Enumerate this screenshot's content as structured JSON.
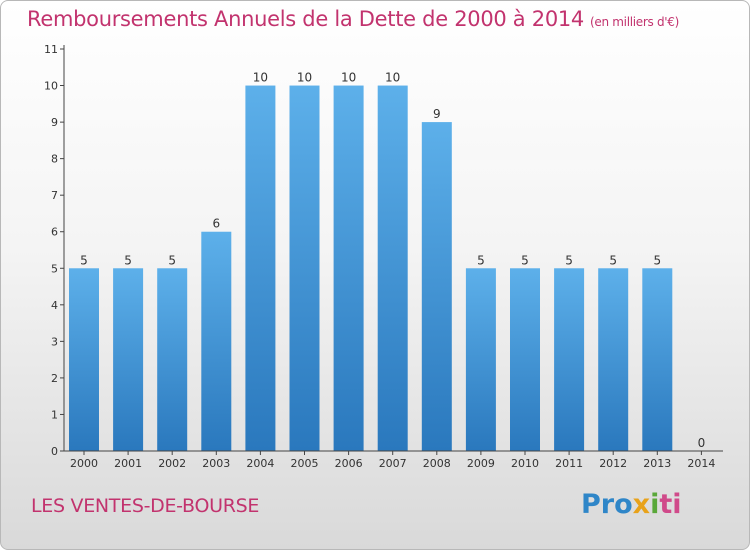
{
  "chart_data": {
    "type": "bar",
    "title": "Remboursements Annuels de la Dette de 2000 à 2014",
    "subtitle": "(en milliers d'€)",
    "categories": [
      "2000",
      "2001",
      "2002",
      "2003",
      "2004",
      "2005",
      "2006",
      "2007",
      "2008",
      "2009",
      "2010",
      "2011",
      "2012",
      "2013",
      "2014"
    ],
    "values": [
      5,
      5,
      5,
      6,
      10,
      10,
      10,
      10,
      9,
      5,
      5,
      5,
      5,
      5,
      0
    ],
    "ylim": [
      0,
      11
    ],
    "yticks": [
      0,
      1,
      2,
      3,
      4,
      5,
      6,
      7,
      8,
      9,
      10,
      11
    ],
    "grid": false,
    "bar_color": "#3d95d8"
  },
  "footer": {
    "commune": "LES VENTES-DE-BOURSE",
    "logo": "Proxiti"
  },
  "colors": {
    "title": "#c2336e",
    "axis": "#333333"
  }
}
